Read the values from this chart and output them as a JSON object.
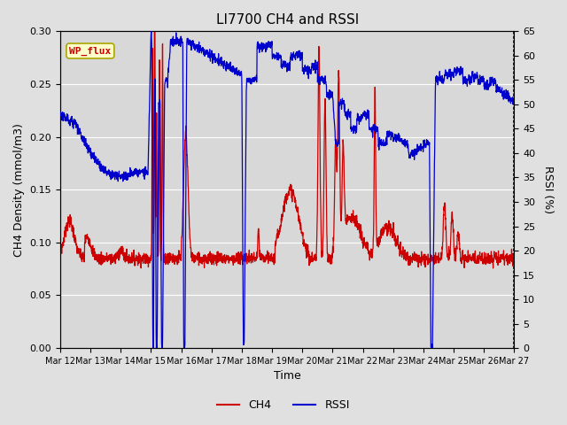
{
  "title": "LI7700 CH4 and RSSI",
  "xlabel": "Time",
  "ylabel_left": "CH4 Density (mmol/m3)",
  "ylabel_right": "RSSI (%)",
  "ylim_left": [
    0.0,
    0.3
  ],
  "ylim_right": [
    0,
    65
  ],
  "yticks_left": [
    0.0,
    0.05,
    0.1,
    0.15,
    0.2,
    0.25,
    0.3
  ],
  "yticks_right": [
    0,
    5,
    10,
    15,
    20,
    25,
    30,
    35,
    40,
    45,
    50,
    55,
    60,
    65
  ],
  "xtick_labels": [
    "Mar 12",
    "Mar 13",
    "Mar 14",
    "Mar 15",
    "Mar 16",
    "Mar 17",
    "Mar 18",
    "Mar 19",
    "Mar 20",
    "Mar 21",
    "Mar 22",
    "Mar 23",
    "Mar 24",
    "Mar 25",
    "Mar 26",
    "Mar 27"
  ],
  "ch4_color": "#cc0000",
  "rssi_color": "#0000cc",
  "fig_bg_color": "#e0e0e0",
  "plot_bg_color": "#d8d8d8",
  "annotation_text": "WP_flux",
  "annotation_color": "#cc0000",
  "annotation_bg": "#ffffcc",
  "annotation_edge": "#aaa800",
  "legend_ch4": "CH4",
  "legend_rssi": "RSSI",
  "linewidth": 0.9,
  "title_fontsize": 11,
  "axis_fontsize": 9,
  "tick_fontsize": 8,
  "xtick_fontsize": 7
}
